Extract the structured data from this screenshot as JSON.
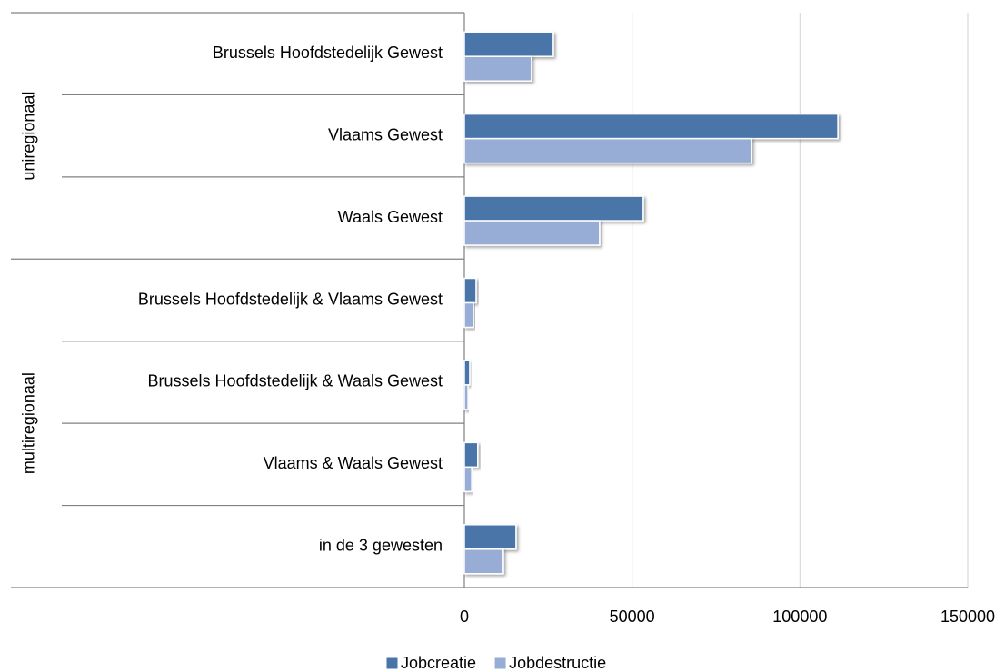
{
  "chart_data": {
    "type": "bar",
    "orientation": "horizontal",
    "category_groups": [
      {
        "name": "uniregionaal",
        "categories": [
          "Brussels Hoofdstedelijk Gewest",
          "Vlaams Gewest",
          "Waals Gewest"
        ]
      },
      {
        "name": "multiregionaal",
        "categories": [
          "Brussels Hoofdstedelijk & Vlaams Gewest",
          "Brussels Hoofdstedelijk & Waals Gewest",
          "Vlaams & Waals Gewest",
          "in de 3 gewesten"
        ]
      }
    ],
    "series": [
      {
        "name": "Jobcreatie",
        "color": "#4a74a8",
        "values": [
          26500,
          111300,
          53300,
          3500,
          1600,
          4000,
          15400
        ]
      },
      {
        "name": "Jobdestructie",
        "color": "#98add5",
        "values": [
          20000,
          85600,
          40300,
          2700,
          1100,
          2200,
          11600
        ]
      }
    ],
    "xlim": [
      0,
      150000
    ],
    "xticks": [
      0,
      50000,
      100000,
      150000
    ],
    "grid": true,
    "legend": "bottom"
  }
}
